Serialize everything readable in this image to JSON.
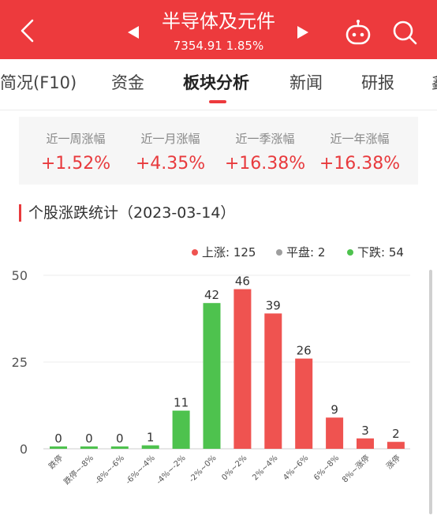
{
  "header": {
    "title": "半导体及元件",
    "subtitle": "7354.91 1.85%",
    "background_color": "#ed3a3d",
    "icons": [
      "back-icon",
      "prev-triangle-icon",
      "next-triangle-icon",
      "robot-icon",
      "search-icon"
    ]
  },
  "tabs": [
    {
      "label": "简况(F10)"
    },
    {
      "label": "资金"
    },
    {
      "label": "板块分析",
      "active": true
    },
    {
      "label": "新闻"
    },
    {
      "label": "研报"
    },
    {
      "label": "鑫"
    }
  ],
  "stats": [
    {
      "label": "近一周涨幅",
      "value": "+1.52%"
    },
    {
      "label": "近一月涨幅",
      "value": "+4.35%"
    },
    {
      "label": "近一季涨幅",
      "value": "+16.38%"
    },
    {
      "label": "近一年涨幅",
      "value": "+16.38%"
    }
  ],
  "section": {
    "title": "个股涨跌统计（2023-03-14）"
  },
  "legend": [
    {
      "label": "上涨: 125",
      "color": "#ef5350"
    },
    {
      "label": "平盘: 2",
      "color": "#9e9e9e"
    },
    {
      "label": "下跌: 54",
      "color": "#4ec24e"
    }
  ],
  "chart_data": {
    "type": "bar",
    "categories": [
      "跌停",
      "跌停~-8%",
      "-8%~-6%",
      "-6%~-4%",
      "-4%~-2%",
      "-2%~0%",
      "0%~2%",
      "2%~4%",
      "4%~6%",
      "6%~8%",
      "8%~涨停",
      "涨停"
    ],
    "values": [
      0,
      0,
      0,
      1,
      11,
      42,
      46,
      39,
      26,
      9,
      3,
      2
    ],
    "colors": [
      "#4ec24e",
      "#4ec24e",
      "#4ec24e",
      "#4ec24e",
      "#4ec24e",
      "#4ec24e",
      "#ef5350",
      "#ef5350",
      "#ef5350",
      "#ef5350",
      "#ef5350",
      "#ef5350"
    ],
    "yticks": [
      0,
      25,
      50
    ],
    "ylim": [
      0,
      50
    ],
    "grid": true
  }
}
